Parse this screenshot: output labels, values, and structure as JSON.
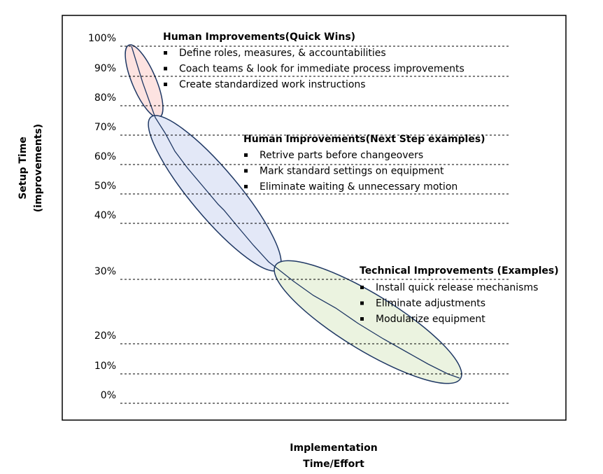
{
  "y_axis": {
    "title": [
      "Setup  Time",
      "(improvements)"
    ],
    "labels": [
      "100%",
      "90%",
      "80%",
      "70%",
      "60%",
      "50%",
      "40%",
      "30%",
      "20%",
      "10%",
      "0%"
    ]
  },
  "x_axis": {
    "title": [
      "Implementation",
      "Time/Effort"
    ]
  },
  "groups": [
    {
      "title": "Human Improvements(Quick Wins)",
      "items": [
        "Define roles, measures, & accountabilities",
        "Coach teams & look for immediate process improvements",
        "Create standardized work instructions"
      ]
    },
    {
      "title": "Human Improvements(Next Step examples)",
      "items": [
        "Retrive parts before changeovers",
        "Mark standard settings on equipment",
        "Eliminate waiting & unnecessary motion"
      ]
    },
    {
      "title": "Technical Improvements (Examples)",
      "items": [
        "Install quick release mechanisms",
        "Eliminate adjustments",
        "Modularize equipment"
      ]
    }
  ]
}
